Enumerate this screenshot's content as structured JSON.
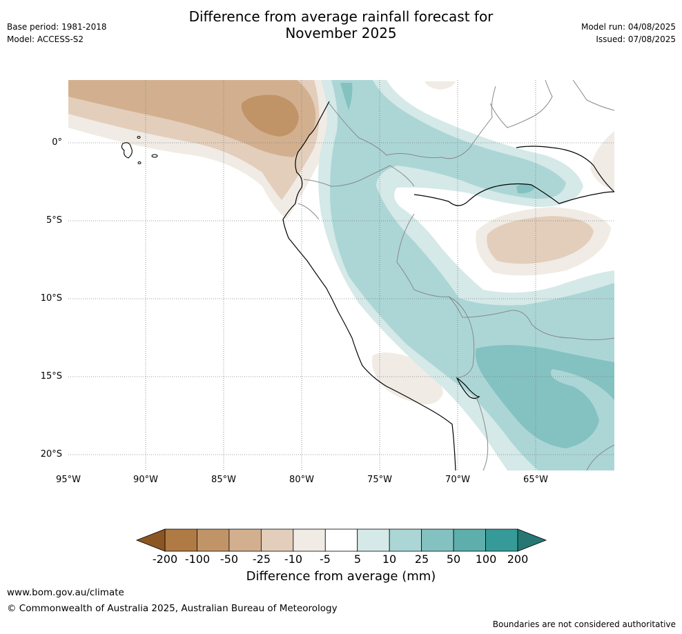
{
  "header": {
    "title_line1": "Difference from average rainfall forecast for",
    "title_line2": "November 2025",
    "base_period": "Base period: 1981-2018",
    "model": "Model: ACCESS-S2",
    "model_run": "Model run: 04/08/2025",
    "issued": "Issued: 07/08/2025"
  },
  "map": {
    "lat_labels": [
      "0°",
      "5°S",
      "10°S",
      "15°S",
      "20°S"
    ],
    "lon_labels": [
      "95°W",
      "90°W",
      "85°W",
      "80°W",
      "75°W",
      "70°W",
      "65°W"
    ],
    "palette": {
      "dry_200": "#8c5624",
      "dry_100": "#b07a45",
      "dry_50": "#c19467",
      "dry_25": "#d2b08f",
      "dry_10": "#e3cebb",
      "dry_5": "#f0ebe4",
      "neutral": "#ffffff",
      "wet_5": "#d4e9e8",
      "wet_10": "#acd6d6",
      "wet_25": "#84c2c1",
      "wet_50": "#5eaeac",
      "wet_100": "#369b98",
      "wet_200": "#267773"
    }
  },
  "colorbar": {
    "tick_labels": [
      "-200",
      "-100",
      "-50",
      "-25",
      "-10",
      "-5",
      "5",
      "10",
      "25",
      "50",
      "100",
      "200"
    ],
    "title": "Difference from average (mm)"
  },
  "footer": {
    "url": "www.bom.gov.au/climate",
    "copyright": "© Commonwealth of Australia 2025, Australian Bureau of Meteorology",
    "note": "Boundaries are not considered authoritative"
  }
}
